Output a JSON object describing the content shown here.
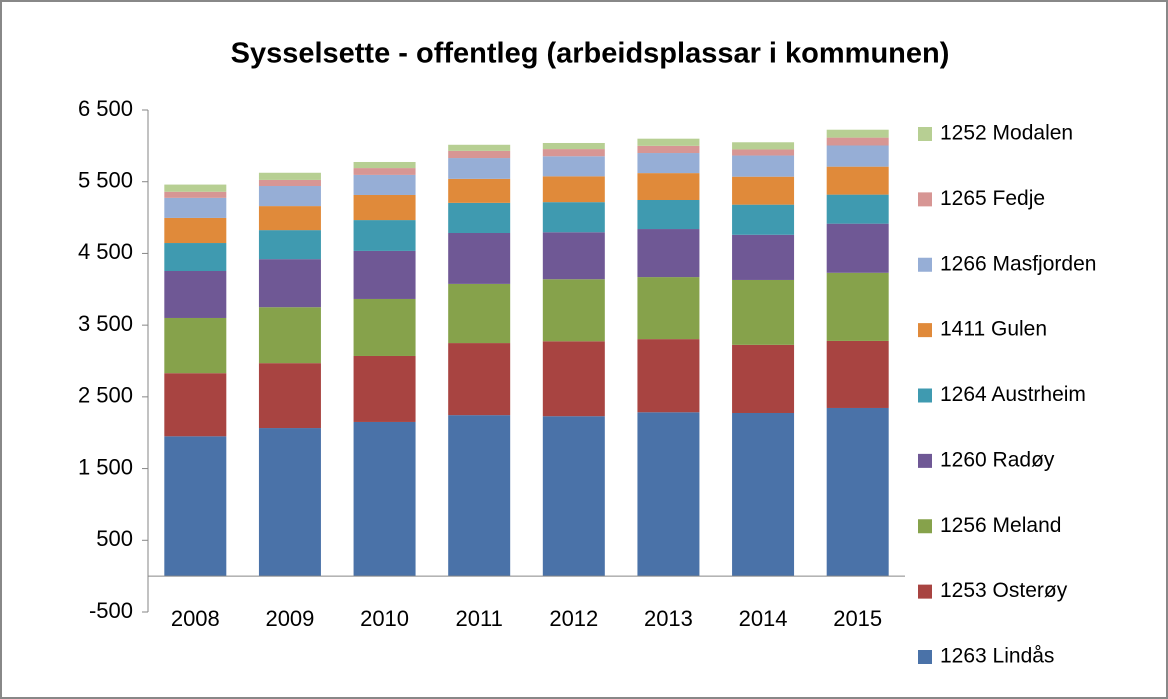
{
  "chart_data": {
    "type": "stacked_bar",
    "title": "Sysselsette - offentleg (arbeidsplassar i kommunen)",
    "categories": [
      "2008",
      "2009",
      "2010",
      "2011",
      "2012",
      "2013",
      "2014",
      "2015"
    ],
    "series": [
      {
        "name": "1263 Lindås",
        "color": "#4a72a8",
        "values": [
          1950,
          2065,
          2150,
          2245,
          2230,
          2285,
          2275,
          2345
        ]
      },
      {
        "name": "1253 Osterøy",
        "color": "#a84441",
        "values": [
          880,
          905,
          920,
          1005,
          1045,
          1020,
          950,
          935
        ]
      },
      {
        "name": "1256 Meland",
        "color": "#86a24b",
        "values": [
          770,
          780,
          795,
          825,
          865,
          865,
          905,
          950
        ]
      },
      {
        "name": "1260 Radøy",
        "color": "#6f5895",
        "values": [
          655,
          670,
          670,
          710,
          655,
          670,
          630,
          685
        ]
      },
      {
        "name": "1264 Austrheim",
        "color": "#3f9ab0",
        "values": [
          390,
          405,
          430,
          420,
          420,
          405,
          420,
          405
        ]
      },
      {
        "name": "1411 Gulen",
        "color": "#e08a3a",
        "values": [
          350,
          335,
          350,
          335,
          360,
          375,
          390,
          390
        ]
      },
      {
        "name": "1266 Masfjorden",
        "color": "#96aed6",
        "values": [
          280,
          280,
          280,
          290,
          280,
          280,
          295,
          295
        ]
      },
      {
        "name": "1265 Fedje",
        "color": "#d79694",
        "values": [
          85,
          85,
          95,
          100,
          100,
          100,
          85,
          110
        ]
      },
      {
        "name": "1252 Modalen",
        "color": "#b7cf93",
        "values": [
          100,
          100,
          85,
          85,
          85,
          100,
          100,
          110
        ]
      }
    ],
    "ylim": [
      -500,
      6500
    ],
    "yticks": [
      -500,
      500,
      {
        "value": 1500,
        "label": "1 500"
      },
      {
        "value": 2500,
        "label": "2 500"
      },
      {
        "value": 3500,
        "label": "3 500"
      },
      {
        "value": 4500,
        "label": "4 500"
      },
      {
        "value": 5500,
        "label": "5 500"
      },
      {
        "value": 6500,
        "label": "6 500"
      }
    ],
    "grid": false
  }
}
